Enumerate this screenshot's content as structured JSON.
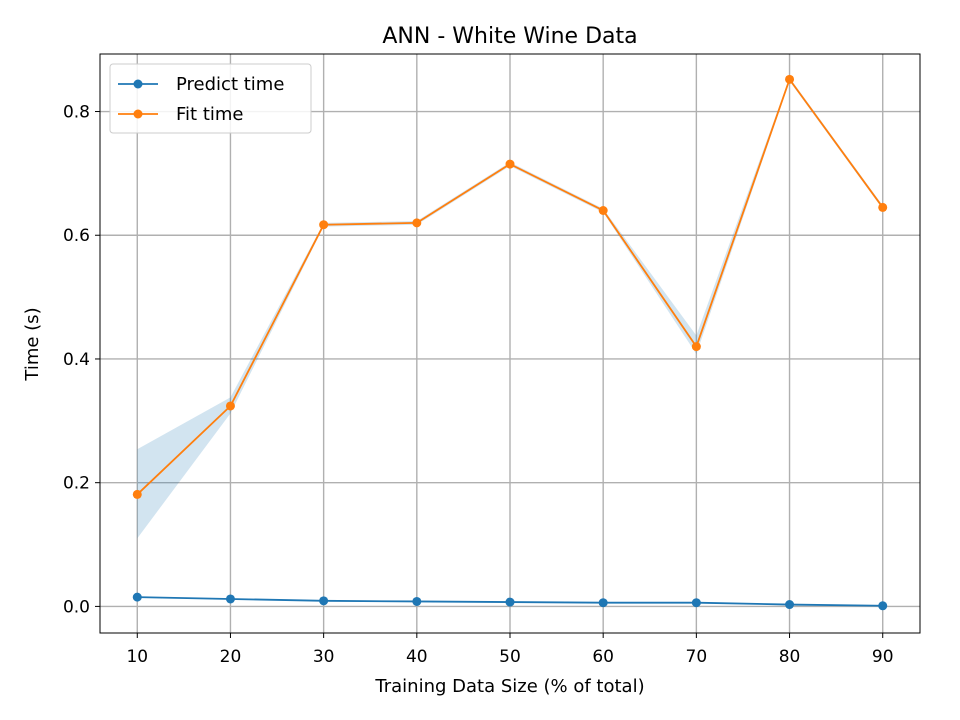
{
  "chart_data": {
    "type": "line",
    "title": "ANN - White Wine Data",
    "xlabel": "Training Data Size (% of total)",
    "ylabel": "Time (s)",
    "x": [
      10,
      20,
      30,
      40,
      50,
      60,
      70,
      80,
      90
    ],
    "xticks": [
      "10",
      "20",
      "30",
      "40",
      "50",
      "60",
      "70",
      "80",
      "90"
    ],
    "yticks": [
      "0.0",
      "0.2",
      "0.4",
      "0.6",
      "0.8"
    ],
    "xlim": [
      6,
      94
    ],
    "ylim": [
      -0.043,
      0.893
    ],
    "grid": true,
    "legend_position": "top-left",
    "series": [
      {
        "name": "Predict time",
        "color": "#1f77b4",
        "values": [
          0.015,
          0.012,
          0.009,
          0.008,
          0.007,
          0.006,
          0.006,
          0.003,
          0.001
        ]
      },
      {
        "name": "Fit time",
        "color": "#ff7f0e",
        "values": [
          0.181,
          0.324,
          0.617,
          0.62,
          0.715,
          0.64,
          0.42,
          0.852,
          0.645
        ],
        "band_lower": [
          0.11,
          0.312,
          0.614,
          0.617,
          0.712,
          0.637,
          0.408,
          0.849,
          0.642
        ],
        "band_upper": [
          0.254,
          0.338,
          0.62,
          0.623,
          0.718,
          0.643,
          0.438,
          0.855,
          0.648
        ],
        "band_color": "#1f77b4"
      }
    ]
  }
}
